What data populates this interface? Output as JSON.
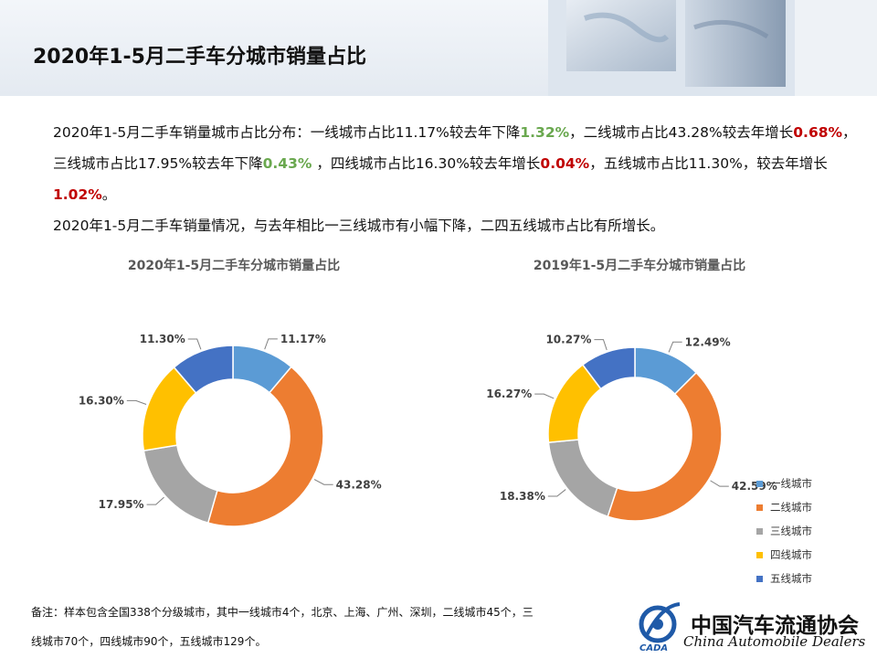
{
  "page": {
    "title": "2020年1-5月二手车分城市销量占比"
  },
  "summary": {
    "l1_a": "2020年1-5月二手车销量城市占比分布：一线城市占比11.17%较去年下降",
    "l1_b": "1.32%",
    "l1_c": "，二线城市占比43.28%较去年增长",
    "l1_d": "0.68%",
    "l1_e": "，三线城市占比17.95%较去年下降",
    "l1_f": "0.43%",
    "l1_g": " ，四线城市占比16.30%较去年增长",
    "l1_h": "0.04%",
    "l1_i": "，五线城市占比11.30%，较去年增长",
    "l1_j": "1.02%",
    "l1_k": "。",
    "p2": "2020年1-5月二手车销量情况，与去年相比一三线城市有小幅下降，二四五线城市占比有所增长。"
  },
  "colors": {
    "tier1": "#5b9bd5",
    "tier2": "#ed7d31",
    "tier3": "#a5a5a5",
    "tier4": "#ffc000",
    "tier5": "#4472c4",
    "down": "#6aa84f",
    "up": "#c00000"
  },
  "chart_data": [
    {
      "type": "pie",
      "donut": true,
      "title": "2020年1-5月二手车分城市销量占比",
      "categories": [
        "一线城市",
        "二线城市",
        "三线城市",
        "四线城市",
        "五线城市"
      ],
      "values": [
        11.17,
        43.28,
        17.95,
        16.3,
        11.3
      ],
      "labels": [
        "11.17%",
        "43.28%",
        "17.95%",
        "16.30%",
        "11.30%"
      ]
    },
    {
      "type": "pie",
      "donut": true,
      "title": "2019年1-5月二手车分城市销量占比",
      "categories": [
        "一线城市",
        "二线城市",
        "三线城市",
        "四线城市",
        "五线城市"
      ],
      "values": [
        12.49,
        42.59,
        18.38,
        16.27,
        10.27
      ],
      "labels": [
        "12.49%",
        "42.59%",
        "18.38%",
        "16.27%",
        "10.27%"
      ]
    }
  ],
  "legend": [
    "一线城市",
    "二线城市",
    "三线城市",
    "四线城市",
    "五线城市"
  ],
  "footnote": {
    "line1": "备注：样本包含全国338个分级城市，其中一线城市4个，北京、上海、广州、深圳，二线城市45个，三",
    "line2": "线城市70个，四线城市90个，五线城市129个。"
  },
  "logo": {
    "name": "中国汽车流通协会",
    "english": "China Automobile Dealers",
    "mark_text": "CADA"
  }
}
